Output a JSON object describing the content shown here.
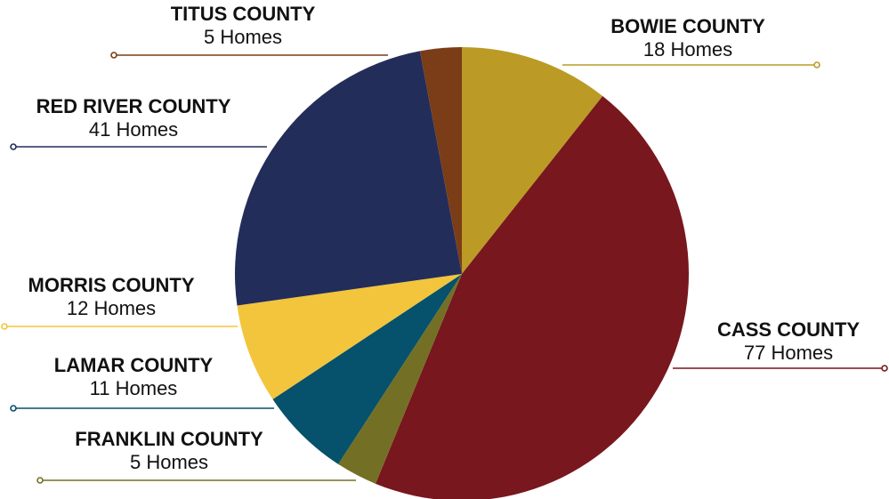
{
  "chart_data": {
    "type": "pie",
    "unit_label": "Homes",
    "slices": [
      {
        "name": "BOWIE COUNTY",
        "value": 18,
        "value_label": "18 Homes",
        "color": "#bb9b26",
        "label_pos": "top-right"
      },
      {
        "name": "CASS COUNTY",
        "value": 77,
        "value_label": "77 Homes",
        "color": "#78171d",
        "label_pos": "right"
      },
      {
        "name": "FRANKLIN COUNTY",
        "value": 5,
        "value_label": "5 Homes",
        "color": "#737026",
        "label_pos": "bottom-left"
      },
      {
        "name": "LAMAR COUNTY",
        "value": 11,
        "value_label": "11 Homes",
        "color": "#06516b",
        "label_pos": "left"
      },
      {
        "name": "MORRIS COUNTY",
        "value": 12,
        "value_label": "12 Homes",
        "color": "#f2c53c",
        "label_pos": "left"
      },
      {
        "name": "RED RIVER COUNTY",
        "value": 41,
        "value_label": "41 Homes",
        "color": "#232d5a",
        "label_pos": "top-left"
      },
      {
        "name": "TITUS COUNTY",
        "value": 5,
        "value_label": "5 Homes",
        "color": "#7a3d17",
        "label_pos": "top"
      }
    ]
  }
}
